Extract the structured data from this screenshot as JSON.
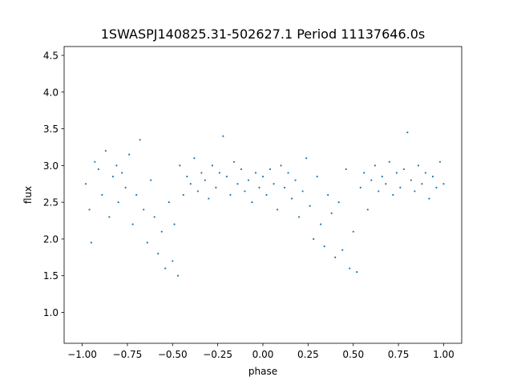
{
  "chart_data": {
    "type": "scatter",
    "title": "1SWASPJ140825.31-502627.1 Period 11137646.0s",
    "xlabel": "phase",
    "ylabel": "flux",
    "xlim": [
      -1.1,
      1.1
    ],
    "ylim": [
      0.58,
      4.62
    ],
    "x_ticks": [
      -1.0,
      -0.75,
      -0.5,
      -0.25,
      0.0,
      0.25,
      0.5,
      0.75,
      1.0
    ],
    "x_tick_labels": [
      "−1.00",
      "−0.75",
      "−0.50",
      "−0.25",
      "0.00",
      "0.25",
      "0.50",
      "0.75",
      "1.00"
    ],
    "y_ticks": [
      1.0,
      1.5,
      2.0,
      2.5,
      3.0,
      3.5,
      4.0,
      4.5
    ],
    "y_tick_labels": [
      "1.0",
      "1.5",
      "2.0",
      "2.5",
      "3.0",
      "3.5",
      "4.0",
      "4.5"
    ],
    "grid": false,
    "marker_color": "#1f77b4",
    "series": [
      {
        "name": "",
        "points": [
          [
            -0.98,
            2.75
          ],
          [
            -0.96,
            2.4
          ],
          [
            -0.95,
            1.95
          ],
          [
            -0.93,
            3.05
          ],
          [
            -0.91,
            2.95
          ],
          [
            -0.89,
            2.6
          ],
          [
            -0.87,
            3.2
          ],
          [
            -0.85,
            2.3
          ],
          [
            -0.83,
            2.85
          ],
          [
            -0.81,
            3.0
          ],
          [
            -0.8,
            2.5
          ],
          [
            -0.78,
            2.9
          ],
          [
            -0.76,
            2.7
          ],
          [
            -0.74,
            3.15
          ],
          [
            -0.72,
            2.2
          ],
          [
            -0.7,
            2.6
          ],
          [
            -0.68,
            3.35
          ],
          [
            -0.66,
            2.4
          ],
          [
            -0.64,
            1.95
          ],
          [
            -0.62,
            2.8
          ],
          [
            -0.6,
            2.3
          ],
          [
            -0.58,
            1.8
          ],
          [
            -0.56,
            2.1
          ],
          [
            -0.54,
            1.6
          ],
          [
            -0.52,
            2.5
          ],
          [
            -0.5,
            1.7
          ],
          [
            -0.49,
            2.2
          ],
          [
            -0.47,
            1.5
          ],
          [
            -0.46,
            3.0
          ],
          [
            -0.44,
            2.6
          ],
          [
            -0.42,
            2.85
          ],
          [
            -0.4,
            2.75
          ],
          [
            -0.38,
            3.1
          ],
          [
            -0.36,
            2.65
          ],
          [
            -0.34,
            2.9
          ],
          [
            -0.32,
            2.8
          ],
          [
            -0.3,
            2.55
          ],
          [
            -0.28,
            3.0
          ],
          [
            -0.26,
            2.7
          ],
          [
            -0.24,
            2.9
          ],
          [
            -0.22,
            3.4
          ],
          [
            -0.2,
            2.85
          ],
          [
            -0.18,
            2.6
          ],
          [
            -0.16,
            3.05
          ],
          [
            -0.14,
            2.75
          ],
          [
            -0.12,
            2.95
          ],
          [
            -0.1,
            2.65
          ],
          [
            -0.08,
            2.8
          ],
          [
            -0.06,
            2.5
          ],
          [
            -0.04,
            2.9
          ],
          [
            -0.02,
            2.7
          ],
          [
            0.0,
            2.85
          ],
          [
            0.02,
            2.6
          ],
          [
            0.04,
            2.95
          ],
          [
            0.06,
            2.75
          ],
          [
            0.08,
            2.4
          ],
          [
            0.1,
            3.0
          ],
          [
            0.12,
            2.7
          ],
          [
            0.14,
            2.9
          ],
          [
            0.16,
            2.55
          ],
          [
            0.18,
            2.8
          ],
          [
            0.2,
            2.3
          ],
          [
            0.22,
            2.65
          ],
          [
            0.24,
            3.1
          ],
          [
            0.26,
            2.45
          ],
          [
            0.28,
            2.0
          ],
          [
            0.3,
            2.85
          ],
          [
            0.32,
            2.2
          ],
          [
            0.34,
            1.9
          ],
          [
            0.36,
            2.6
          ],
          [
            0.38,
            2.35
          ],
          [
            0.4,
            1.75
          ],
          [
            0.42,
            2.5
          ],
          [
            0.44,
            1.85
          ],
          [
            0.46,
            2.95
          ],
          [
            0.48,
            1.6
          ],
          [
            0.5,
            2.1
          ],
          [
            0.52,
            1.55
          ],
          [
            0.54,
            2.7
          ],
          [
            0.56,
            2.9
          ],
          [
            0.58,
            2.4
          ],
          [
            0.6,
            2.8
          ],
          [
            0.62,
            3.0
          ],
          [
            0.64,
            2.65
          ],
          [
            0.66,
            2.85
          ],
          [
            0.68,
            2.75
          ],
          [
            0.7,
            3.05
          ],
          [
            0.72,
            2.6
          ],
          [
            0.74,
            2.9
          ],
          [
            0.76,
            2.7
          ],
          [
            0.78,
            2.95
          ],
          [
            0.8,
            3.45
          ],
          [
            0.82,
            2.8
          ],
          [
            0.84,
            2.65
          ],
          [
            0.86,
            3.0
          ],
          [
            0.88,
            2.75
          ],
          [
            0.9,
            2.9
          ],
          [
            0.92,
            2.55
          ],
          [
            0.94,
            2.85
          ],
          [
            0.96,
            2.7
          ],
          [
            0.98,
            3.05
          ],
          [
            1.0,
            2.75
          ]
        ]
      }
    ]
  }
}
